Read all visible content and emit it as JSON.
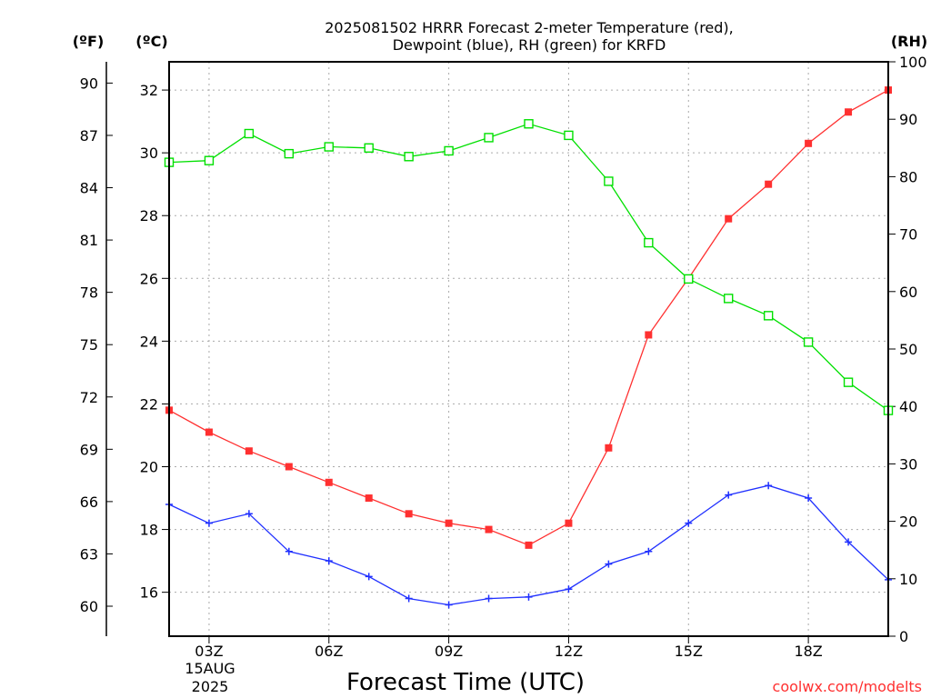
{
  "chart_data": {
    "type": "line",
    "title_lines": [
      "2025081502 HRRR Forecast 2-meter Temperature (red),",
      "Dewpoint (blue), RH (green) for KRFD"
    ],
    "xlabel": "Forecast Time (UTC)",
    "date_lines": [
      "15AUG",
      "2025"
    ],
    "watermark": "coolwx.com/modelts",
    "unit_labels": {
      "fahrenheit": "(ºF)",
      "celsius": "(ºC)",
      "rh": "(RH)"
    },
    "x": [
      2,
      3,
      4,
      5,
      6,
      7,
      8,
      9,
      10,
      11,
      12,
      13,
      14,
      15,
      16,
      17,
      18,
      19,
      20
    ],
    "xlim": [
      2,
      20
    ],
    "x_ticks": [
      {
        "x": 3,
        "label": "03Z"
      },
      {
        "x": 6,
        "label": "06Z"
      },
      {
        "x": 9,
        "label": "09Z"
      },
      {
        "x": 12,
        "label": "12Z"
      },
      {
        "x": 15,
        "label": "15Z"
      },
      {
        "x": 18,
        "label": "18Z"
      }
    ],
    "ylim_celsius": [
      14.6,
      32.9
    ],
    "celsius_ticks": [
      16,
      18,
      20,
      22,
      24,
      26,
      28,
      30,
      32
    ],
    "fahrenheit_ticks": [
      60,
      63,
      66,
      69,
      72,
      75,
      78,
      81,
      84,
      87,
      90
    ],
    "ylim_rh": [
      0,
      100
    ],
    "rh_ticks": [
      0,
      10,
      20,
      30,
      40,
      50,
      60,
      70,
      80,
      90,
      100
    ],
    "grid": true,
    "series": [
      {
        "axis": "celsius",
        "color": "#ff3030",
        "marker": "filled-square",
        "values": [
          21.8,
          21.1,
          20.5,
          20.0,
          19.5,
          19.0,
          18.5,
          18.2,
          18.0,
          17.5,
          18.2,
          20.6,
          24.2,
          26.0,
          27.9,
          29.0,
          30.3,
          31.3,
          32.0
        ]
      },
      {
        "axis": "celsius",
        "color": "#2030ff",
        "marker": "plus",
        "values": [
          18.8,
          18.2,
          18.5,
          17.3,
          17.0,
          16.5,
          15.8,
          15.6,
          15.8,
          15.85,
          16.1,
          16.9,
          17.3,
          18.2,
          19.1,
          19.4,
          19.0,
          17.6,
          16.4
        ]
      },
      {
        "axis": "rh",
        "color": "#00e000",
        "marker": "open-square",
        "values": [
          82.5,
          82.8,
          87.5,
          84.0,
          85.2,
          85.0,
          83.5,
          84.5,
          86.8,
          89.2,
          87.2,
          79.2,
          68.5,
          62.2,
          58.8,
          55.8,
          51.2,
          44.2,
          39.3
        ]
      }
    ]
  }
}
